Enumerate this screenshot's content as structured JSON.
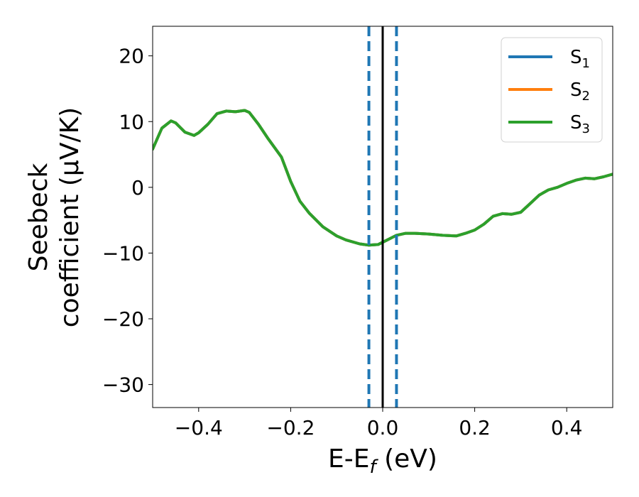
{
  "chart_data": {
    "type": "line",
    "title": "",
    "xlabel": {
      "main": "E-E",
      "sub": "f",
      "suffix": " (eV)"
    },
    "ylabel": {
      "line1": "Seebeck",
      "line2": "coefficient  (μV/K)"
    },
    "xlim": [
      -0.5,
      0.5
    ],
    "ylim": [
      -33.5,
      24.5
    ],
    "xticks": [
      -0.4,
      -0.2,
      0.0,
      0.2,
      0.4
    ],
    "xtick_labels": [
      "−0.4",
      "−0.2",
      "0.0",
      "0.2",
      "0.4"
    ],
    "yticks": [
      20,
      10,
      0,
      -10,
      -20,
      -30
    ],
    "ytick_labels": [
      "20",
      "10",
      "0",
      "−10",
      "−20",
      "−30"
    ],
    "grid": false,
    "legend_position": "top-right",
    "series": [
      {
        "name": {
          "base": "S",
          "sub": "1"
        },
        "color": "#1f77b4",
        "x": [
          -0.5,
          -0.48,
          -0.46,
          -0.45,
          -0.43,
          -0.41,
          -0.4,
          -0.38,
          -0.36,
          -0.34,
          -0.32,
          -0.3,
          -0.29,
          -0.27,
          -0.25,
          -0.22,
          -0.2,
          -0.18,
          -0.16,
          -0.13,
          -0.1,
          -0.08,
          -0.05,
          -0.03,
          -0.01,
          0.01,
          0.03,
          0.05,
          0.07,
          0.1,
          0.13,
          0.16,
          0.18,
          0.2,
          0.22,
          0.24,
          0.26,
          0.28,
          0.3,
          0.32,
          0.34,
          0.36,
          0.38,
          0.4,
          0.42,
          0.44,
          0.46,
          0.48,
          0.5
        ],
        "values": [
          5.8,
          9.0,
          10.1,
          9.8,
          8.4,
          7.9,
          8.3,
          9.6,
          11.2,
          11.6,
          11.5,
          11.7,
          11.4,
          9.6,
          7.5,
          4.6,
          0.9,
          -2.1,
          -3.9,
          -6.0,
          -7.4,
          -8.0,
          -8.6,
          -8.8,
          -8.7,
          -8.0,
          -7.3,
          -7.0,
          -7.0,
          -7.1,
          -7.3,
          -7.4,
          -7.0,
          -6.5,
          -5.6,
          -4.4,
          -4.0,
          -4.1,
          -3.8,
          -2.5,
          -1.2,
          -0.4,
          0.0,
          0.6,
          1.1,
          1.4,
          1.3,
          1.6,
          2.0
        ]
      },
      {
        "name": {
          "base": "S",
          "sub": "2"
        },
        "color": "#ff7f0e",
        "x": [
          -0.5,
          -0.48,
          -0.46,
          -0.45,
          -0.43,
          -0.41,
          -0.4,
          -0.38,
          -0.36,
          -0.34,
          -0.32,
          -0.3,
          -0.29,
          -0.27,
          -0.25,
          -0.22,
          -0.2,
          -0.18,
          -0.16,
          -0.13,
          -0.1,
          -0.08,
          -0.05,
          -0.03,
          -0.01,
          0.01,
          0.03,
          0.05,
          0.07,
          0.1,
          0.13,
          0.16,
          0.18,
          0.2,
          0.22,
          0.24,
          0.26,
          0.28,
          0.3,
          0.32,
          0.34,
          0.36,
          0.38,
          0.4,
          0.42,
          0.44,
          0.46,
          0.48,
          0.5
        ],
        "values": [
          5.8,
          9.0,
          10.1,
          9.8,
          8.4,
          7.9,
          8.3,
          9.6,
          11.2,
          11.6,
          11.5,
          11.7,
          11.4,
          9.6,
          7.5,
          4.6,
          0.9,
          -2.1,
          -3.9,
          -6.0,
          -7.4,
          -8.0,
          -8.6,
          -8.8,
          -8.7,
          -8.0,
          -7.3,
          -7.0,
          -7.0,
          -7.1,
          -7.3,
          -7.4,
          -7.0,
          -6.5,
          -5.6,
          -4.4,
          -4.0,
          -4.1,
          -3.8,
          -2.5,
          -1.2,
          -0.4,
          0.0,
          0.6,
          1.1,
          1.4,
          1.3,
          1.6,
          2.0
        ]
      },
      {
        "name": {
          "base": "S",
          "sub": "3"
        },
        "color": "#2ca02c",
        "x": [
          -0.5,
          -0.48,
          -0.46,
          -0.45,
          -0.43,
          -0.41,
          -0.4,
          -0.38,
          -0.36,
          -0.34,
          -0.32,
          -0.3,
          -0.29,
          -0.27,
          -0.25,
          -0.22,
          -0.2,
          -0.18,
          -0.16,
          -0.13,
          -0.1,
          -0.08,
          -0.05,
          -0.03,
          -0.01,
          0.01,
          0.03,
          0.05,
          0.07,
          0.1,
          0.13,
          0.16,
          0.18,
          0.2,
          0.22,
          0.24,
          0.26,
          0.28,
          0.3,
          0.32,
          0.34,
          0.36,
          0.38,
          0.4,
          0.42,
          0.44,
          0.46,
          0.48,
          0.5
        ],
        "values": [
          5.8,
          9.0,
          10.1,
          9.8,
          8.4,
          7.9,
          8.3,
          9.6,
          11.2,
          11.6,
          11.5,
          11.7,
          11.4,
          9.6,
          7.5,
          4.6,
          0.9,
          -2.1,
          -3.9,
          -6.0,
          -7.4,
          -8.0,
          -8.6,
          -8.8,
          -8.7,
          -8.0,
          -7.3,
          -7.0,
          -7.0,
          -7.1,
          -7.3,
          -7.4,
          -7.0,
          -6.5,
          -5.6,
          -4.4,
          -4.0,
          -4.1,
          -3.8,
          -2.5,
          -1.2,
          -0.4,
          0.0,
          0.6,
          1.1,
          1.4,
          1.3,
          1.6,
          2.0
        ]
      }
    ],
    "reference_lines": [
      {
        "x": -0.03,
        "color": "#1f77b4",
        "style": "dashed"
      },
      {
        "x": 0.03,
        "color": "#1f77b4",
        "style": "dashed"
      },
      {
        "x": 0.0,
        "color": "#000000",
        "style": "solid"
      }
    ]
  }
}
